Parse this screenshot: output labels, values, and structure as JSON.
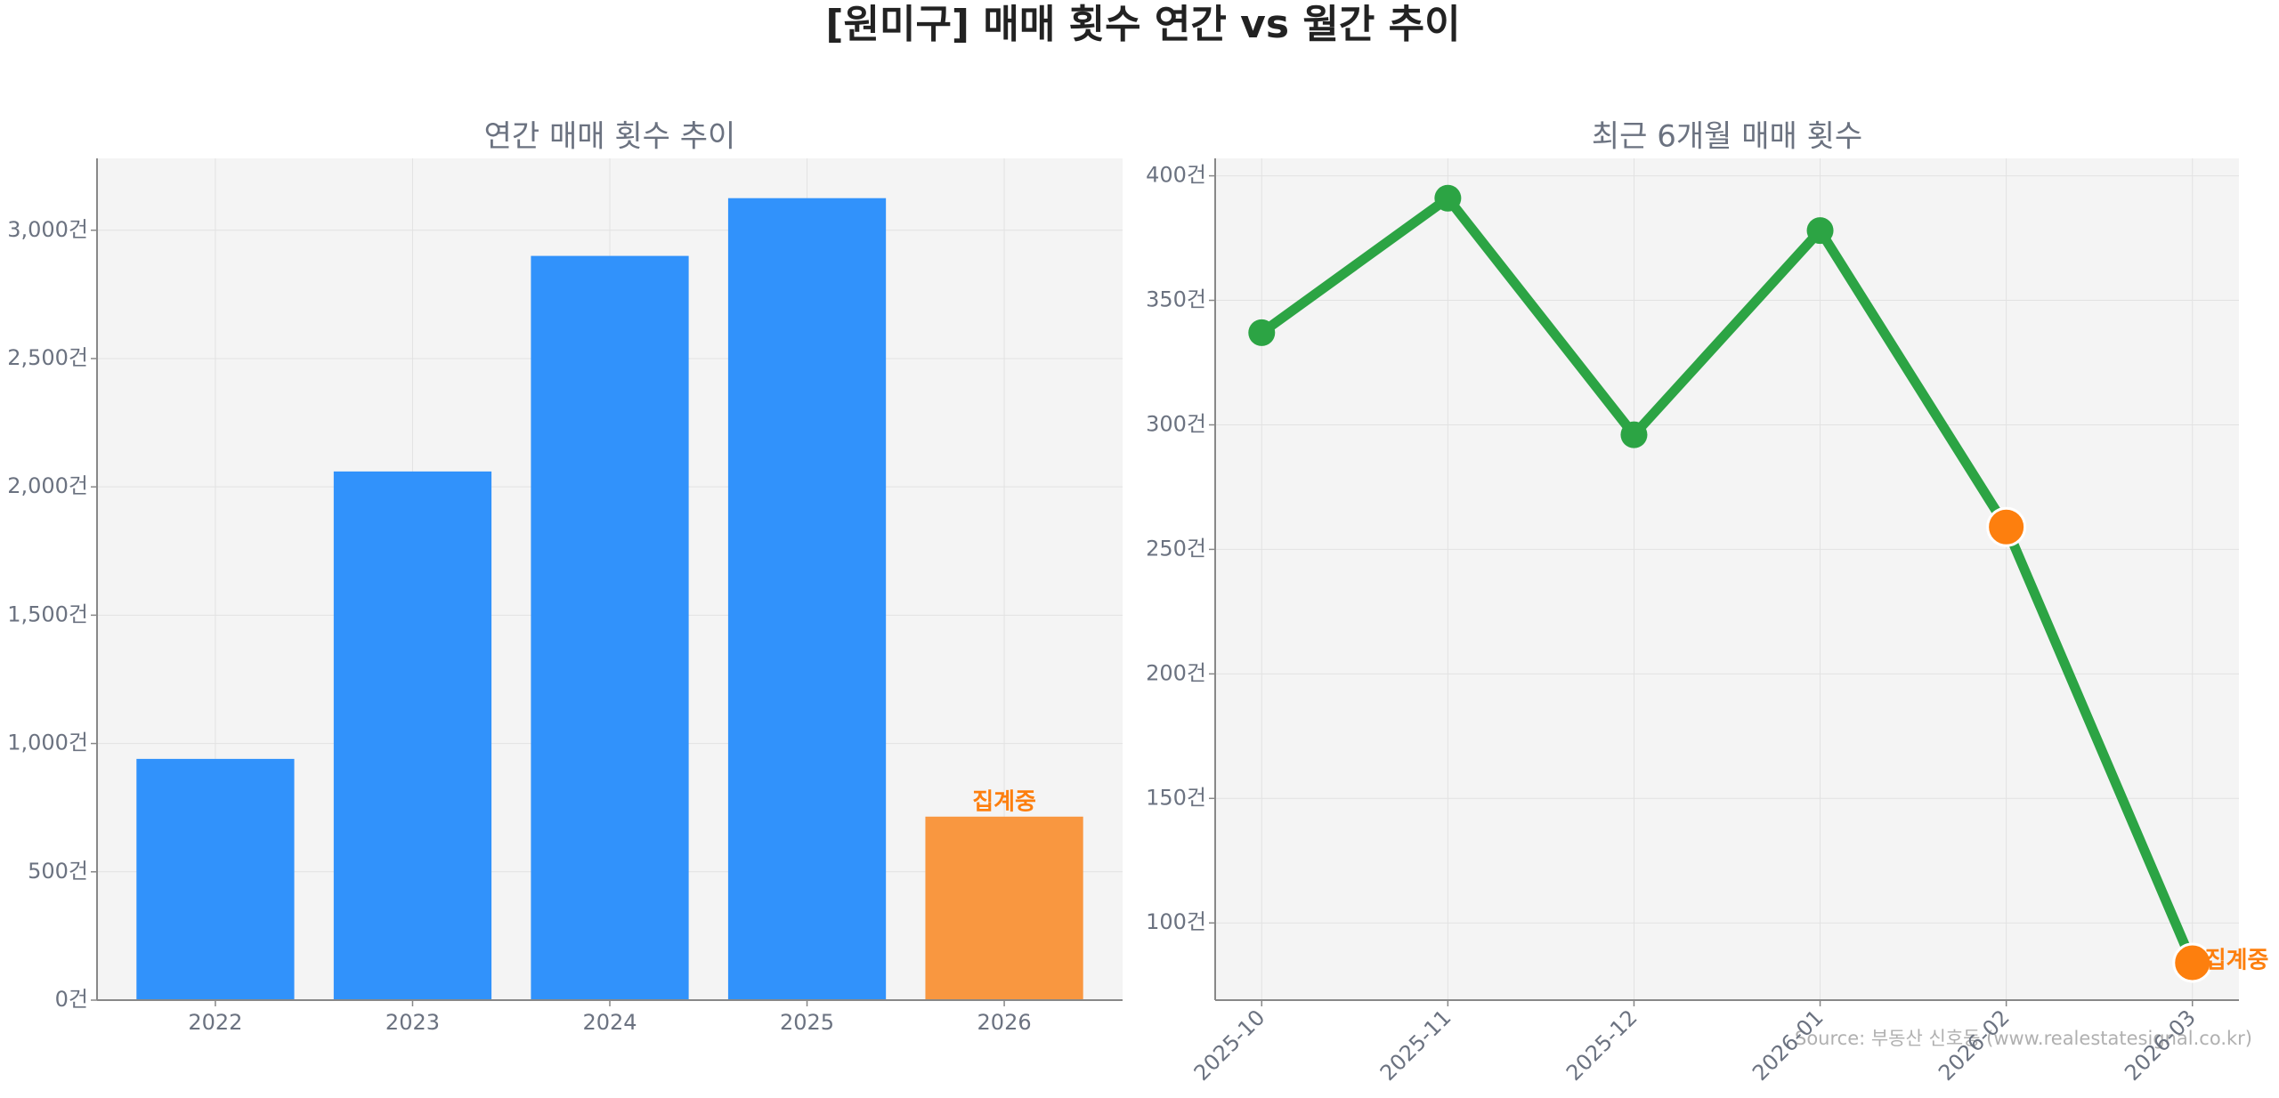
{
  "title": "[원미구] 매매 횟수 연간 vs 월간 추이",
  "source": "Source: 부동산 신호등 (www.realestatesignal.co.kr)",
  "chart_data": [
    {
      "type": "bar",
      "title": "연간 매매 횟수 추이",
      "categories": [
        "2022",
        "2023",
        "2024",
        "2025",
        "2026"
      ],
      "values": [
        940,
        2060,
        2900,
        3125,
        715
      ],
      "colors": [
        "#3192fb",
        "#3192fb",
        "#3192fb",
        "#3192fb",
        "#f99740"
      ],
      "ylim": [
        0,
        3280
      ],
      "yticks": [
        {
          "value": 0,
          "label": "0건"
        },
        {
          "value": 500,
          "label": "500건"
        },
        {
          "value": 1000,
          "label": "1,000건"
        },
        {
          "value": 1500,
          "label": "1,500건"
        },
        {
          "value": 2000,
          "label": "2,000건"
        },
        {
          "value": 2500,
          "label": "2,500건"
        },
        {
          "value": 3000,
          "label": "3,000건"
        }
      ],
      "grid": true,
      "annotation": "집계중",
      "annotation_color": "#fd7f0e"
    },
    {
      "type": "line",
      "title": "최근 6개월 매매 횟수",
      "categories": [
        "2025-10",
        "2025-11",
        "2025-12",
        "2026-01",
        "2026-02",
        "2026-03"
      ],
      "values": [
        337,
        391,
        296,
        378,
        259,
        84
      ],
      "color": "#2ca444",
      "marker_colors": [
        "#2ca444",
        "#2ca444",
        "#2ca444",
        "#2ca444",
        "#fd7f0e",
        "#fd7f0e"
      ],
      "ylim": [
        69,
        407
      ],
      "yticks": [
        {
          "value": 100,
          "label": "100건"
        },
        {
          "value": 150,
          "label": "150건"
        },
        {
          "value": 200,
          "label": "200건"
        },
        {
          "value": 250,
          "label": "250건"
        },
        {
          "value": 300,
          "label": "300건"
        },
        {
          "value": 350,
          "label": "350건"
        },
        {
          "value": 400,
          "label": "400건"
        }
      ],
      "grid": true,
      "annotation": "집계중",
      "annotation_color": "#fd7f0e"
    }
  ]
}
